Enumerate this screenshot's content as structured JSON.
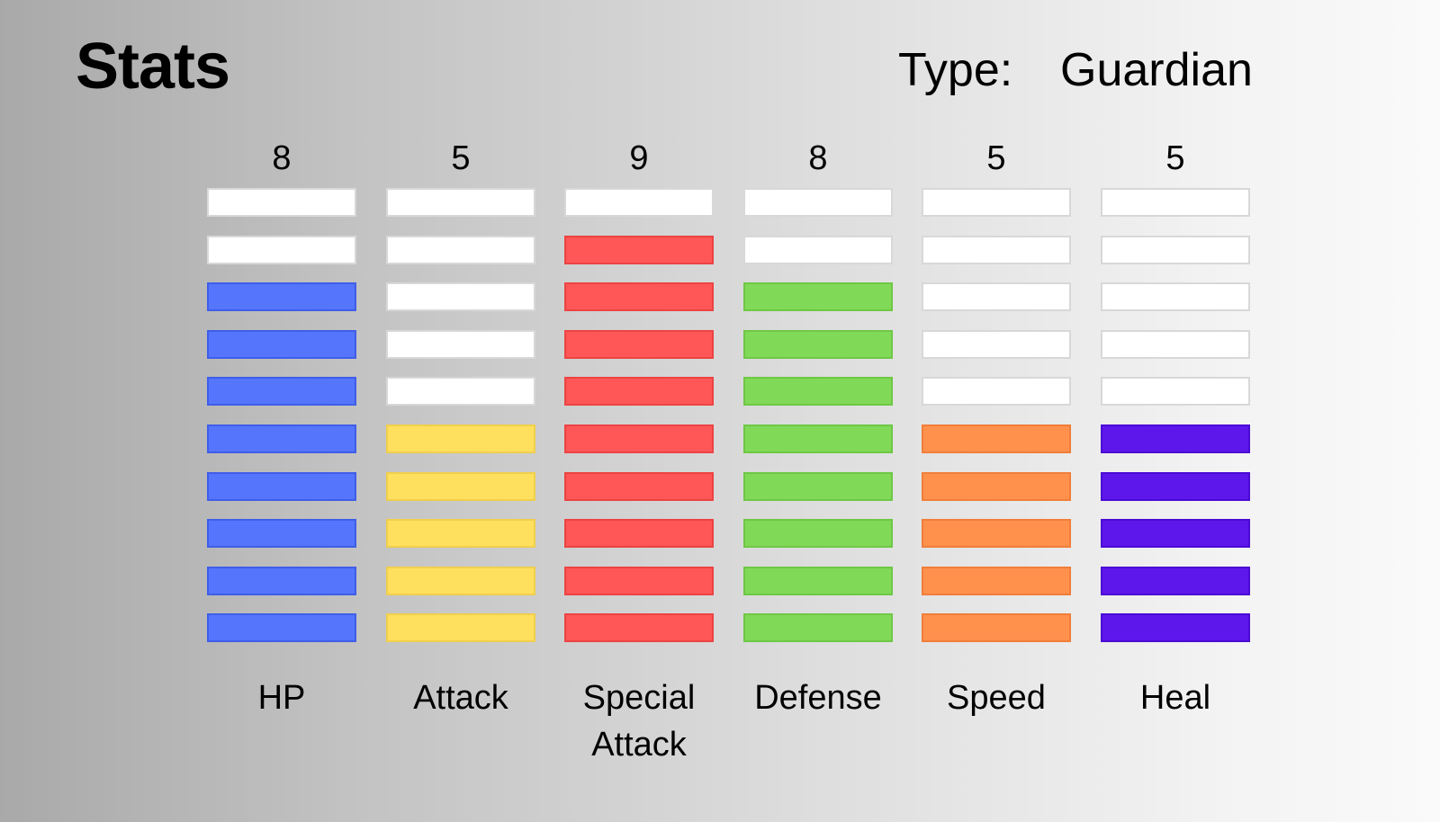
{
  "header": {
    "title": "Stats",
    "type_label": "Type:",
    "type_value": "Guardian"
  },
  "stats": {
    "max": 10,
    "items": [
      {
        "label": "HP",
        "value": "8",
        "color": "#5575fc",
        "border": "#3f5ee8"
      },
      {
        "label": "Attack",
        "value": "5",
        "color": "#ffdf5e",
        "border": "#f0cf4c"
      },
      {
        "label": "Special Attack",
        "value": "9",
        "color": "#ff5757",
        "border": "#ec4343"
      },
      {
        "label": "Defense",
        "value": "8",
        "color": "#80d957",
        "border": "#6ec846"
      },
      {
        "label": "Speed",
        "value": "5",
        "color": "#ff914d",
        "border": "#f07e3a"
      },
      {
        "label": "Heal",
        "value": "5",
        "color": "#5d17eb",
        "border": "#4a0bd4"
      }
    ]
  }
}
